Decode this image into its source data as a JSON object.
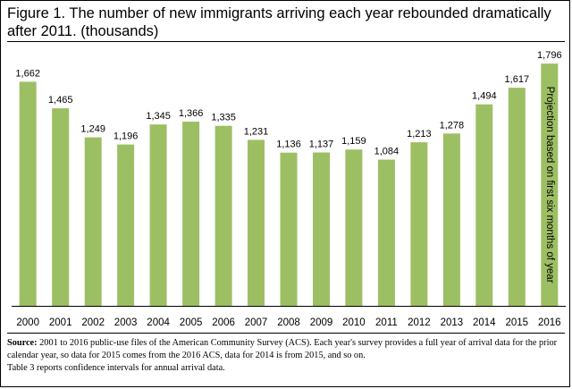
{
  "title": "Figure 1. The number of new immigrants arriving each year rebounded dramatically after 2011. (thousands)",
  "chart_data": {
    "type": "bar",
    "categories": [
      "2000",
      "2001",
      "2002",
      "2003",
      "2004",
      "2005",
      "2006",
      "2007",
      "2008",
      "2009",
      "2010",
      "2011",
      "2012",
      "2013",
      "2014",
      "2015",
      "2016"
    ],
    "values": [
      1662,
      1465,
      1249,
      1196,
      1345,
      1366,
      1335,
      1231,
      1136,
      1137,
      1159,
      1084,
      1213,
      1278,
      1494,
      1617,
      1796
    ],
    "value_labels": [
      "1,662",
      "1,465",
      "1,249",
      "1,196",
      "1,345",
      "1,366",
      "1,335",
      "1,231",
      "1,136",
      "1,137",
      "1,159",
      "1,084",
      "1,213",
      "1,278",
      "1,494",
      "1,617",
      "1,796"
    ],
    "ylim": [
      0,
      1850
    ],
    "bar_color": "#9dbf64",
    "annotation": {
      "category": "2016",
      "text": "Projection based on first six months of year"
    },
    "grid": false,
    "legend": "none"
  },
  "source": {
    "label": "Source:",
    "text": "2001 to 2016 public-use files of the American Community  Survey (ACS). Each year's survey provides a full year of arrival data for the prior  calendar year, so data for 2015 comes from the 2016 ACS, data for 2014 is from 2015, and so on.",
    "note": "Table 3 reports confidence intervals for annual arrival data."
  }
}
